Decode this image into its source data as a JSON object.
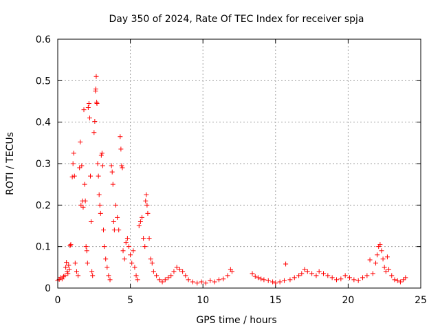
{
  "chart_data": {
    "type": "scatter",
    "title": "Day 350 of 2024, Rate Of TEC Index for receiver spja",
    "xlabel": "GPS time / hours",
    "ylabel": "ROTI / TECUs",
    "xlim": [
      0,
      25
    ],
    "ylim": [
      0,
      0.6
    ],
    "x_ticks": [
      "0",
      "5",
      "10",
      "15",
      "20",
      "25"
    ],
    "y_ticks": [
      "0",
      "0.1",
      "0.2",
      "0.3",
      "0.4",
      "0.5",
      "0.6"
    ],
    "grid": true,
    "marker": "+",
    "color": "#ff0000",
    "series": [
      {
        "name": "ROTI",
        "points": [
          [
            0.0,
            0.018
          ],
          [
            0.1,
            0.021
          ],
          [
            0.2,
            0.025
          ],
          [
            0.3,
            0.022
          ],
          [
            0.4,
            0.028
          ],
          [
            0.5,
            0.03
          ],
          [
            0.55,
            0.05
          ],
          [
            0.6,
            0.062
          ],
          [
            0.65,
            0.04
          ],
          [
            0.7,
            0.035
          ],
          [
            0.75,
            0.055
          ],
          [
            0.8,
            0.045
          ],
          [
            0.85,
            0.102
          ],
          [
            0.9,
            0.105
          ],
          [
            1.0,
            0.268
          ],
          [
            1.05,
            0.3
          ],
          [
            1.1,
            0.325
          ],
          [
            1.15,
            0.27
          ],
          [
            1.2,
            0.06
          ],
          [
            1.3,
            0.04
          ],
          [
            1.4,
            0.03
          ],
          [
            1.5,
            0.29
          ],
          [
            1.55,
            0.352
          ],
          [
            1.6,
            0.2
          ],
          [
            1.65,
            0.295
          ],
          [
            1.7,
            0.21
          ],
          [
            1.75,
            0.195
          ],
          [
            1.8,
            0.43
          ],
          [
            1.85,
            0.25
          ],
          [
            1.9,
            0.21
          ],
          [
            1.95,
            0.1
          ],
          [
            2.0,
            0.09
          ],
          [
            2.05,
            0.06
          ],
          [
            2.1,
            0.435
          ],
          [
            2.15,
            0.445
          ],
          [
            2.2,
            0.41
          ],
          [
            2.25,
            0.27
          ],
          [
            2.3,
            0.16
          ],
          [
            2.35,
            0.04
          ],
          [
            2.4,
            0.03
          ],
          [
            2.5,
            0.375
          ],
          [
            2.55,
            0.402
          ],
          [
            2.6,
            0.475
          ],
          [
            2.62,
            0.48
          ],
          [
            2.65,
            0.51
          ],
          [
            2.68,
            0.448
          ],
          [
            2.7,
            0.445
          ],
          [
            2.75,
            0.3
          ],
          [
            2.8,
            0.27
          ],
          [
            2.85,
            0.225
          ],
          [
            2.9,
            0.2
          ],
          [
            2.95,
            0.18
          ],
          [
            3.0,
            0.32
          ],
          [
            3.05,
            0.325
          ],
          [
            3.1,
            0.295
          ],
          [
            3.15,
            0.14
          ],
          [
            3.2,
            0.1
          ],
          [
            3.3,
            0.07
          ],
          [
            3.4,
            0.05
          ],
          [
            3.5,
            0.03
          ],
          [
            3.6,
            0.02
          ],
          [
            3.7,
            0.295
          ],
          [
            3.75,
            0.28
          ],
          [
            3.8,
            0.25
          ],
          [
            3.85,
            0.16
          ],
          [
            3.9,
            0.14
          ],
          [
            4.0,
            0.2
          ],
          [
            4.1,
            0.17
          ],
          [
            4.2,
            0.14
          ],
          [
            4.3,
            0.365
          ],
          [
            4.35,
            0.335
          ],
          [
            4.4,
            0.295
          ],
          [
            4.45,
            0.29
          ],
          [
            4.5,
            0.09
          ],
          [
            4.6,
            0.07
          ],
          [
            4.7,
            0.11
          ],
          [
            4.8,
            0.12
          ],
          [
            4.9,
            0.1
          ],
          [
            5.0,
            0.08
          ],
          [
            5.1,
            0.06
          ],
          [
            5.2,
            0.09
          ],
          [
            5.3,
            0.05
          ],
          [
            5.4,
            0.03
          ],
          [
            5.5,
            0.02
          ],
          [
            5.6,
            0.15
          ],
          [
            5.7,
            0.16
          ],
          [
            5.8,
            0.17
          ],
          [
            5.9,
            0.12
          ],
          [
            6.0,
            0.1
          ],
          [
            6.05,
            0.21
          ],
          [
            6.1,
            0.225
          ],
          [
            6.15,
            0.2
          ],
          [
            6.2,
            0.18
          ],
          [
            6.3,
            0.12
          ],
          [
            6.4,
            0.07
          ],
          [
            6.5,
            0.06
          ],
          [
            6.6,
            0.04
          ],
          [
            6.8,
            0.03
          ],
          [
            7.0,
            0.02
          ],
          [
            7.2,
            0.015
          ],
          [
            7.4,
            0.02
          ],
          [
            7.6,
            0.025
          ],
          [
            7.8,
            0.03
          ],
          [
            8.0,
            0.04
          ],
          [
            8.2,
            0.05
          ],
          [
            8.4,
            0.045
          ],
          [
            8.6,
            0.04
          ],
          [
            8.8,
            0.03
          ],
          [
            9.0,
            0.02
          ],
          [
            9.3,
            0.015
          ],
          [
            9.6,
            0.012
          ],
          [
            9.9,
            0.015
          ],
          [
            10.2,
            0.012
          ],
          [
            10.5,
            0.018
          ],
          [
            10.8,
            0.015
          ],
          [
            11.1,
            0.02
          ],
          [
            11.4,
            0.022
          ],
          [
            11.7,
            0.03
          ],
          [
            11.9,
            0.045
          ],
          [
            12.0,
            0.04
          ],
          [
            13.4,
            0.035
          ],
          [
            13.6,
            0.028
          ],
          [
            13.8,
            0.025
          ],
          [
            14.0,
            0.022
          ],
          [
            14.2,
            0.02
          ],
          [
            14.5,
            0.018
          ],
          [
            14.8,
            0.015
          ],
          [
            15.0,
            0.012
          ],
          [
            15.3,
            0.015
          ],
          [
            15.6,
            0.018
          ],
          [
            15.7,
            0.058
          ],
          [
            16.0,
            0.02
          ],
          [
            16.3,
            0.025
          ],
          [
            16.6,
            0.03
          ],
          [
            16.8,
            0.035
          ],
          [
            17.0,
            0.045
          ],
          [
            17.2,
            0.04
          ],
          [
            17.5,
            0.035
          ],
          [
            17.8,
            0.03
          ],
          [
            18.0,
            0.04
          ],
          [
            18.3,
            0.035
          ],
          [
            18.6,
            0.03
          ],
          [
            18.9,
            0.025
          ],
          [
            19.2,
            0.02
          ],
          [
            19.5,
            0.022
          ],
          [
            19.8,
            0.03
          ],
          [
            20.1,
            0.025
          ],
          [
            20.4,
            0.02
          ],
          [
            20.7,
            0.018
          ],
          [
            21.0,
            0.025
          ],
          [
            21.3,
            0.03
          ],
          [
            21.5,
            0.068
          ],
          [
            21.7,
            0.035
          ],
          [
            21.9,
            0.06
          ],
          [
            22.0,
            0.08
          ],
          [
            22.1,
            0.1
          ],
          [
            22.2,
            0.105
          ],
          [
            22.3,
            0.09
          ],
          [
            22.4,
            0.07
          ],
          [
            22.5,
            0.05
          ],
          [
            22.6,
            0.04
          ],
          [
            22.7,
            0.075
          ],
          [
            22.8,
            0.045
          ],
          [
            23.0,
            0.03
          ],
          [
            23.2,
            0.02
          ],
          [
            23.4,
            0.018
          ],
          [
            23.6,
            0.015
          ],
          [
            23.8,
            0.02
          ],
          [
            23.95,
            0.025
          ]
        ]
      }
    ]
  }
}
